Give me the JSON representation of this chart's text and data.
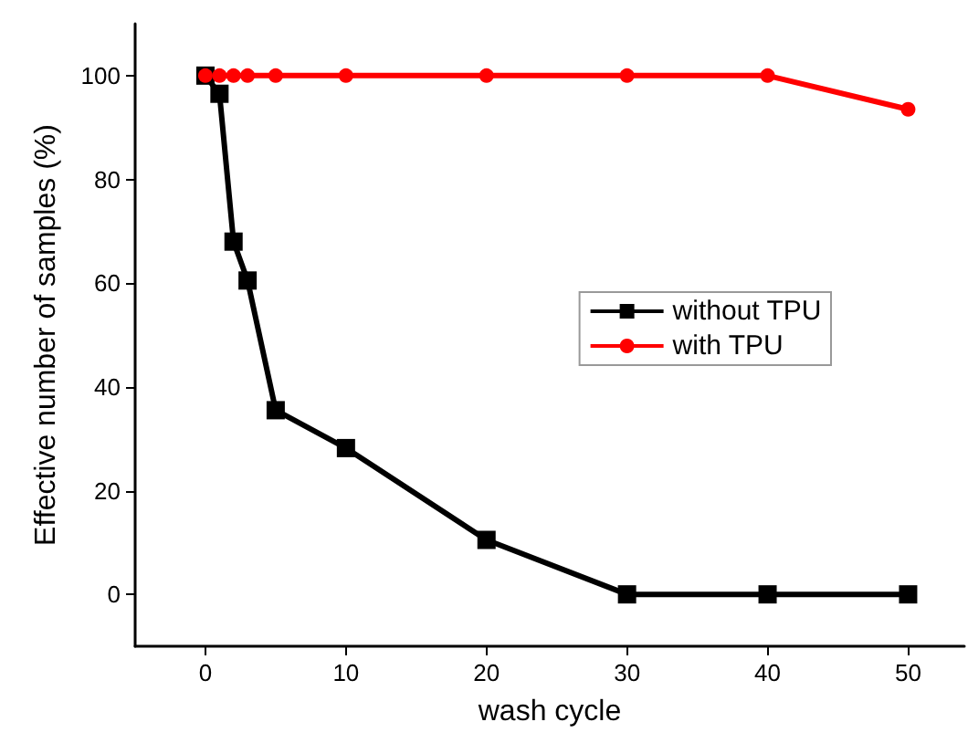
{
  "chart_data": {
    "type": "line",
    "xlabel": "wash cycle",
    "ylabel": "Effective number of samples (%)",
    "x": [
      0,
      1,
      2,
      3,
      5,
      10,
      20,
      30,
      40,
      50
    ],
    "xlim": [
      -5,
      54
    ],
    "xticks": [
      0,
      10,
      20,
      30,
      40,
      50
    ],
    "ylim": [
      -10,
      110
    ],
    "yticks": [
      0,
      20,
      40,
      60,
      80,
      100
    ],
    "grid": false,
    "legend": "right",
    "line_style": "solid",
    "series": [
      {
        "name": "without TPU",
        "color": "#000000",
        "marker": "square",
        "values": [
          100,
          96.5,
          68,
          60.5,
          35.5,
          28.2,
          10.5,
          0,
          0,
          0
        ]
      },
      {
        "name": "with TPU",
        "color": "#ff0000",
        "marker": "circle",
        "values": [
          100,
          100,
          100,
          100,
          100,
          100,
          100,
          100,
          100,
          93.5
        ]
      }
    ]
  }
}
